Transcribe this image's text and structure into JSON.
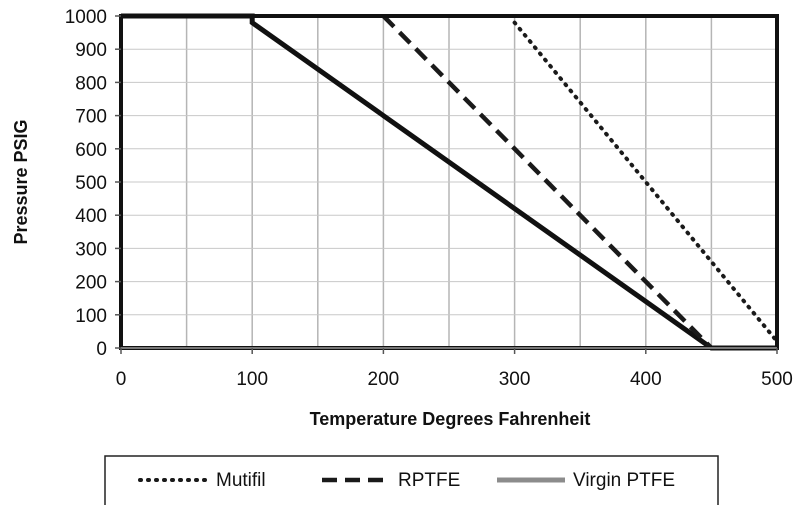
{
  "chart_data": {
    "type": "line",
    "xlabel": "Temperature Degrees Fahrenheit",
    "ylabel": "Pressure PSIG",
    "xlim": [
      0,
      500
    ],
    "ylim": [
      0,
      1000
    ],
    "x_ticks": [
      0,
      100,
      200,
      300,
      400,
      500
    ],
    "y_ticks": [
      0,
      100,
      200,
      300,
      400,
      500,
      600,
      700,
      800,
      900,
      1000
    ],
    "grid": true,
    "legend_position": "bottom",
    "series": [
      {
        "name": "Mutifil",
        "style": "dotted",
        "color": "#1a1a1a",
        "points": [
          [
            300,
            980
          ],
          [
            500,
            20
          ]
        ]
      },
      {
        "name": "RPTFE",
        "style": "dashed",
        "color": "#1a1a1a",
        "points": [
          [
            200,
            1000
          ],
          [
            450,
            0
          ]
        ]
      },
      {
        "name": "Virgin PTFE",
        "style": "solid",
        "color": "#8c8c8c",
        "points": [
          [
            0,
            1000
          ],
          [
            100,
            1000
          ],
          [
            100,
            980
          ],
          [
            450,
            0
          ],
          [
            500,
            0
          ]
        ]
      }
    ]
  }
}
